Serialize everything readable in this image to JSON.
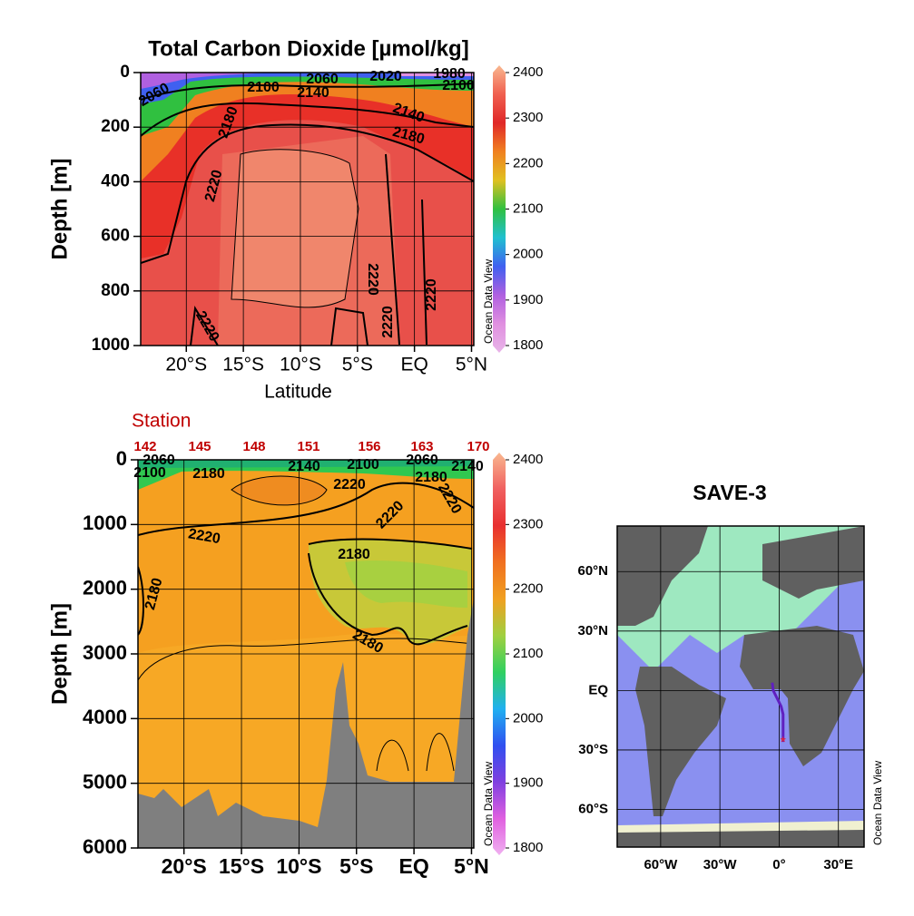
{
  "chart_data": [
    {
      "type": "contour",
      "title": "Total Carbon Dioxide [µmol/kg]",
      "x_label": "Latitude",
      "y_label": "Depth [m]",
      "watermark": "Ocean Data View",
      "xlim": [
        -24,
        5.2
      ],
      "xticks": [
        {
          "value": -20,
          "label": "20°S"
        },
        {
          "value": -15,
          "label": "15°S"
        },
        {
          "value": -10,
          "label": "10°S"
        },
        {
          "value": -5,
          "label": "5°S"
        },
        {
          "value": 0,
          "label": "EQ"
        },
        {
          "value": 5,
          "label": "5°N"
        }
      ],
      "ylim": [
        0,
        1000
      ],
      "yticks": [
        0,
        200,
        400,
        600,
        800,
        1000
      ],
      "y_inverted": true,
      "grid": true,
      "colorbar_lim": [
        1800,
        2400
      ],
      "colorbar_ticks": [
        1800,
        1900,
        2000,
        2100,
        2200,
        2300,
        2400
      ],
      "colorbar_colors": [
        "#e8b4e8",
        "#e090e0",
        "#b060e0",
        "#4060f0",
        "#20c0d0",
        "#30c040",
        "#e0c020",
        "#f08020",
        "#e02828",
        "#f06050",
        "#f9b890"
      ],
      "contour_labels": [
        2060,
        2100,
        2140,
        2060,
        2020,
        1980,
        2100,
        2140,
        2180,
        2180,
        2220,
        2220,
        2220,
        2220,
        2220
      ]
    },
    {
      "type": "contour",
      "title": "Station",
      "y_label": "Depth [m]",
      "watermark": "Ocean Data View",
      "stations": [
        142,
        145,
        148,
        151,
        156,
        163,
        170
      ],
      "xlim": [
        -24,
        5.2
      ],
      "xticks": [
        {
          "value": -20,
          "label": "20°S"
        },
        {
          "value": -15,
          "label": "15°S"
        },
        {
          "value": -10,
          "label": "10°S"
        },
        {
          "value": -5,
          "label": "5°S"
        },
        {
          "value": 0,
          "label": "EQ"
        },
        {
          "value": 5,
          "label": "5°N"
        }
      ],
      "ylim": [
        0,
        6000
      ],
      "yticks": [
        0,
        1000,
        2000,
        3000,
        4000,
        5000,
        6000
      ],
      "y_inverted": true,
      "grid": true,
      "colorbar_lim": [
        1800,
        2400
      ],
      "colorbar_ticks": [
        1800,
        1900,
        2000,
        2100,
        2200,
        2300,
        2400
      ],
      "colorbar_colors": [
        "#f0b0f0",
        "#e060e0",
        "#8040e0",
        "#3050f0",
        "#20b0f0",
        "#30d060",
        "#a0d040",
        "#f0a020",
        "#f07020",
        "#e83030",
        "#f06060",
        "#f9b890"
      ],
      "contour_labels": [
        2060,
        2100,
        2180,
        2140,
        2100,
        2060,
        2180,
        2220,
        2220,
        2220,
        2220,
        2180,
        2180,
        2180,
        2140
      ]
    },
    {
      "type": "map",
      "title": "SAVE-3",
      "watermark": "Ocean Data View",
      "xlim": [
        -82,
        43
      ],
      "xticks": [
        {
          "value": -60,
          "label": "60°W"
        },
        {
          "value": -30,
          "label": "30°W"
        },
        {
          "value": 0,
          "label": "0°"
        },
        {
          "value": 30,
          "label": "30°E"
        }
      ],
      "ylim": [
        -79,
        83
      ],
      "yticks": [
        {
          "value": 60,
          "label": "60°N"
        },
        {
          "value": 30,
          "label": "30°N"
        },
        {
          "value": 0,
          "label": "EQ"
        },
        {
          "value": -30,
          "label": "30°S"
        },
        {
          "value": -60,
          "label": "60°S"
        }
      ],
      "grid": true,
      "track_color": "#6020c0",
      "end_color": "#ff2020",
      "track": {
        "lon": [
          -3.5,
          -3,
          -1,
          1,
          2,
          2,
          2
        ],
        "lat": [
          4,
          0,
          -4,
          -8,
          -12,
          -20,
          -26
        ]
      }
    }
  ]
}
